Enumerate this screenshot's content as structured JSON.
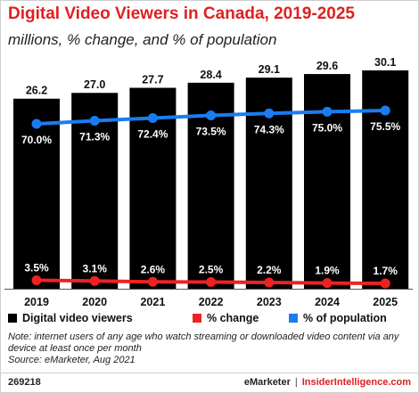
{
  "title": "Digital Video Viewers in Canada, 2019-2025",
  "subtitle": "millions, % change, and % of population",
  "colors": {
    "title": "#e02020",
    "bars": "#000000",
    "change_line": "#ee2222",
    "population_line": "#1a7cf0"
  },
  "chart_data": {
    "type": "bar",
    "title": "Digital Video Viewers in Canada, 2019-2025",
    "subtitle": "millions, % change, and % of population",
    "categories": [
      "2019",
      "2020",
      "2021",
      "2022",
      "2023",
      "2024",
      "2025"
    ],
    "series": [
      {
        "name": "Digital video viewers",
        "type": "bar",
        "values": [
          26.2,
          27.0,
          27.7,
          28.4,
          29.1,
          29.6,
          30.1
        ],
        "labels": [
          "26.2",
          "27.0",
          "27.7",
          "28.4",
          "29.1",
          "29.6",
          "30.1"
        ],
        "color": "#000000"
      },
      {
        "name": "% change",
        "type": "line",
        "values": [
          3.5,
          3.1,
          2.6,
          2.5,
          2.2,
          1.9,
          1.7
        ],
        "labels": [
          "3.5%",
          "3.1%",
          "2.6%",
          "2.5%",
          "2.2%",
          "1.9%",
          "1.7%"
        ],
        "color": "#ee2222"
      },
      {
        "name": "% of population",
        "type": "line",
        "values": [
          70.0,
          71.3,
          72.4,
          73.5,
          74.3,
          75.0,
          75.5
        ],
        "labels": [
          "70.0%",
          "71.3%",
          "72.4%",
          "73.5%",
          "74.3%",
          "75.0%",
          "75.5%"
        ],
        "color": "#1a7cf0"
      }
    ],
    "legend_position": "bottom",
    "grid": false
  },
  "note": "Note: internet users of any age who watch streaming or downloaded video content via any device at least once per month",
  "source": "Source: eMarketer, Aug 2021",
  "footer": {
    "chart_id": "269218",
    "brand": "eMarketer",
    "separator": "|",
    "brand2": "InsiderIntelligence.com"
  }
}
